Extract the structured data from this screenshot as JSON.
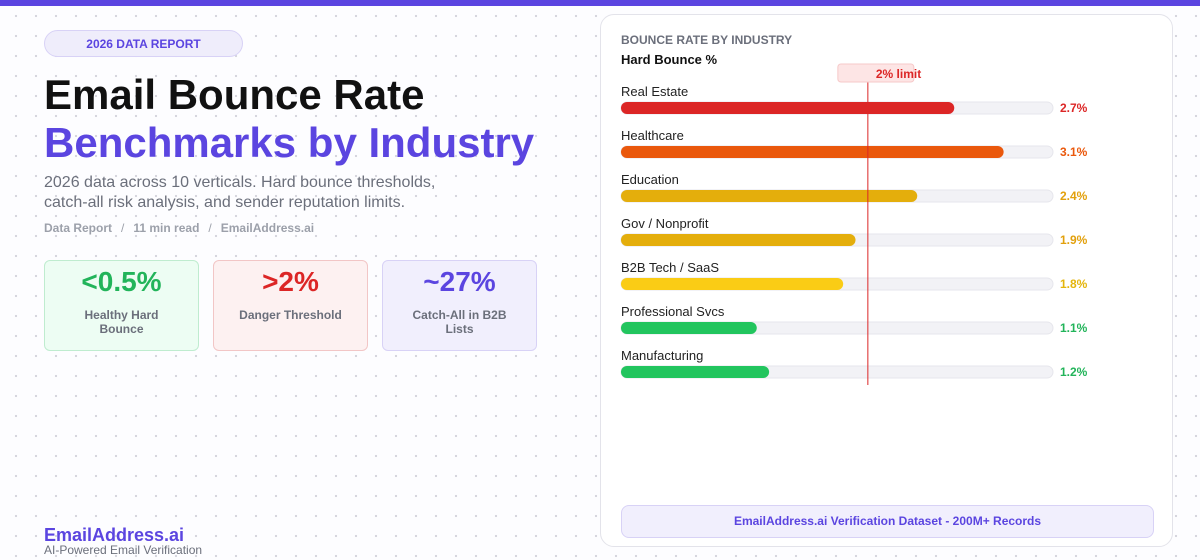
{
  "hero": {
    "tag": "2026 DATA REPORT",
    "title_line1": "Email Bounce Rate",
    "title_line2": "Benchmarks by Industry",
    "description": "2026 data across 10 verticals. Hard bounce thresholds, catch-all risk analysis, and sender reputation limits.",
    "meta": [
      "Data Report",
      "11 min read",
      "EmailAddress.ai"
    ]
  },
  "stats": [
    {
      "value": "<0.5%",
      "label": "Healthy Hard Bounce"
    },
    {
      "value": ">2%",
      "label": "Danger Threshold"
    },
    {
      "value": "~27%",
      "label": "Catch-All in B2B Lists"
    }
  ],
  "brand": {
    "name": "EmailAddress.ai",
    "tagline": "AI-Powered Email Verification"
  },
  "chart_data": {
    "type": "bar",
    "orientation": "horizontal",
    "subtitle": "BOUNCE RATE BY INDUSTRY",
    "title": "Hard Bounce %",
    "categories": [
      "Real Estate",
      "Healthcare",
      "Education",
      "Gov / Nonprofit",
      "B2B Tech / SaaS",
      "Professional Svcs",
      "Manufacturing"
    ],
    "values": [
      2.7,
      3.1,
      2.4,
      1.9,
      1.8,
      1.1,
      1.2
    ],
    "value_labels": [
      "2.7%",
      "3.1%",
      "2.4%",
      "1.9%",
      "1.8%",
      "1.1%",
      "1.2%"
    ],
    "colors": [
      "#dc2626",
      "#ea580c",
      "#e4ae0c",
      "#e4ae0c",
      "#facc15",
      "#22c55e",
      "#22c55e"
    ],
    "label_colors": [
      "#dc2626",
      "#ea580c",
      "#e2a00c",
      "#e2a00c",
      "#e4b50c",
      "#22b45a",
      "#22b45a"
    ],
    "xlim": [
      0,
      3.5
    ],
    "reference_line": {
      "value": 2.0,
      "label": "2% limit",
      "color": "#dc2626"
    },
    "source": "EmailAddress.ai Verification Dataset - 200M+ Records"
  }
}
